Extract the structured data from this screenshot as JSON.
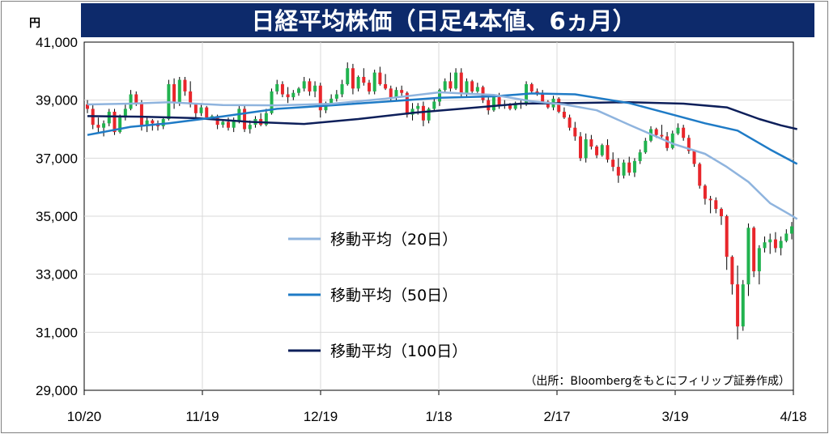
{
  "chart_data": {
    "type": "candlestick",
    "title": "日経平均株価（日足4本値、6ヵ月）",
    "y_unit": "円",
    "ylim": [
      29000,
      41000
    ],
    "y_ticks": [
      "41,000",
      "39,000",
      "37,000",
      "35,000",
      "33,000",
      "31,000",
      "29,000"
    ],
    "y_tick_values": [
      41000,
      39000,
      37000,
      35000,
      33000,
      31000,
      29000
    ],
    "x_tick_labels": [
      "10/20",
      "11/19",
      "12/19",
      "1/18",
      "2/17",
      "3/19",
      "4/18"
    ],
    "source": "（出所：Bloombergをもとにフィリップ証券作成）",
    "legend": {
      "ma20": "移動平均（20日）",
      "ma50": "移動平均（50日）",
      "ma100": "移動平均（100日）"
    },
    "colors": {
      "up": "#21b34f",
      "down": "#e8262b",
      "doji": "#000000",
      "ma20": "#8fb4de",
      "ma50": "#1f7bc6",
      "ma100": "#0d1f5a",
      "title_bg": "#0d2a6b"
    },
    "ohlc": [
      [
        38850,
        39000,
        38550,
        38700
      ],
      [
        38700,
        38850,
        38000,
        38150
      ],
      [
        38150,
        38400,
        37850,
        38050
      ],
      [
        38050,
        38300,
        37750,
        38200
      ],
      [
        38200,
        38700,
        38100,
        38600
      ],
      [
        38600,
        38700,
        37800,
        37900
      ],
      [
        37900,
        38500,
        37850,
        38400
      ],
      [
        38400,
        38850,
        38300,
        38700
      ],
      [
        38700,
        39350,
        38650,
        39200
      ],
      [
        39200,
        39300,
        38800,
        38900
      ],
      [
        38900,
        39000,
        37950,
        38100
      ],
      [
        38100,
        38450,
        37900,
        38300
      ],
      [
        38300,
        38350,
        37950,
        38200
      ],
      [
        38200,
        38300,
        37950,
        38100
      ],
      [
        38100,
        38400,
        38000,
        38350
      ],
      [
        38350,
        39700,
        38300,
        39550
      ],
      [
        39550,
        39750,
        38700,
        38900
      ],
      [
        38900,
        39800,
        38800,
        39700
      ],
      [
        39700,
        39800,
        39150,
        39300
      ],
      [
        39300,
        39650,
        38750,
        38850
      ],
      [
        38850,
        38900,
        38400,
        38550
      ],
      [
        38550,
        38900,
        38450,
        38750
      ],
      [
        38750,
        38800,
        38350,
        38400
      ],
      [
        38400,
        38500,
        38350,
        38450
      ],
      [
        38450,
        38500,
        38000,
        38150
      ],
      [
        38150,
        38350,
        38050,
        38250
      ],
      [
        38250,
        38400,
        37950,
        38050
      ],
      [
        38050,
        38400,
        37900,
        38300
      ],
      [
        38300,
        38800,
        38200,
        38700
      ],
      [
        38700,
        38800,
        37900,
        38000
      ],
      [
        38000,
        38300,
        37850,
        38150
      ],
      [
        38150,
        38450,
        38050,
        38350
      ],
      [
        38350,
        38550,
        38100,
        38150
      ],
      [
        38150,
        38700,
        38100,
        38550
      ],
      [
        38550,
        39400,
        38500,
        39300
      ],
      [
        39300,
        39700,
        39200,
        39550
      ],
      [
        39550,
        39650,
        39100,
        39200
      ],
      [
        39200,
        39450,
        38900,
        39100
      ],
      [
        39100,
        39350,
        39000,
        39250
      ],
      [
        39250,
        39450,
        39150,
        39400
      ],
      [
        39400,
        39800,
        39300,
        39650
      ],
      [
        39650,
        39750,
        39150,
        39300
      ],
      [
        39300,
        39650,
        39100,
        39500
      ],
      [
        39500,
        39600,
        38400,
        38650
      ],
      [
        38650,
        38950,
        38550,
        38900
      ],
      [
        38900,
        39200,
        38850,
        39050
      ],
      [
        39050,
        39350,
        38950,
        39200
      ],
      [
        39200,
        39700,
        39100,
        39550
      ],
      [
        39550,
        40300,
        39500,
        40100
      ],
      [
        40100,
        40250,
        39200,
        39400
      ],
      [
        39400,
        39850,
        39300,
        39800
      ],
      [
        39800,
        40100,
        39500,
        39600
      ],
      [
        39600,
        39700,
        39200,
        39300
      ],
      [
        39300,
        40050,
        39200,
        39950
      ],
      [
        39950,
        40150,
        39500,
        39550
      ],
      [
        39550,
        39900,
        39350,
        39400
      ],
      [
        39400,
        39500,
        38950,
        39100
      ],
      [
        39100,
        39450,
        39000,
        39350
      ],
      [
        39350,
        39500,
        39150,
        39250
      ],
      [
        39250,
        39300,
        38400,
        38500
      ],
      [
        38500,
        38900,
        38300,
        38700
      ],
      [
        38700,
        38900,
        38500,
        38800
      ],
      [
        38800,
        38950,
        38100,
        38300
      ],
      [
        38300,
        38750,
        38200,
        38700
      ],
      [
        38700,
        39050,
        38650,
        38950
      ],
      [
        38950,
        39400,
        38800,
        39350
      ],
      [
        39350,
        39750,
        39250,
        39650
      ],
      [
        39650,
        39950,
        39300,
        39400
      ],
      [
        39400,
        40100,
        39350,
        39950
      ],
      [
        39950,
        40100,
        39100,
        39200
      ],
      [
        39200,
        39750,
        39100,
        39650
      ],
      [
        39650,
        39700,
        39200,
        39300
      ],
      [
        39300,
        39600,
        39250,
        39450
      ],
      [
        39450,
        39500,
        38900,
        39000
      ],
      [
        39000,
        39150,
        38500,
        38650
      ],
      [
        38650,
        39200,
        38600,
        39100
      ],
      [
        39100,
        39250,
        38700,
        38800
      ],
      [
        38800,
        39000,
        38700,
        38850
      ],
      [
        38850,
        38900,
        38650,
        38700
      ],
      [
        38700,
        38950,
        38650,
        38900
      ],
      [
        38900,
        39000,
        38700,
        38850
      ],
      [
        38850,
        39650,
        38800,
        39550
      ],
      [
        39550,
        39600,
        39250,
        39300
      ],
      [
        39300,
        39400,
        39150,
        39200
      ],
      [
        39200,
        39350,
        38850,
        38950
      ],
      [
        38950,
        39000,
        38700,
        38750
      ],
      [
        38750,
        39150,
        38650,
        39050
      ],
      [
        39050,
        39100,
        38550,
        38600
      ],
      [
        38600,
        38750,
        38350,
        38400
      ],
      [
        38400,
        38500,
        37950,
        38050
      ],
      [
        38050,
        38250,
        37600,
        37750
      ],
      [
        37750,
        37900,
        36900,
        37000
      ],
      [
        37000,
        37850,
        36850,
        37650
      ],
      [
        37650,
        37800,
        37300,
        37400
      ],
      [
        37400,
        37450,
        37000,
        37100
      ],
      [
        37100,
        37500,
        37050,
        37450
      ],
      [
        37450,
        37650,
        36850,
        36950
      ],
      [
        36950,
        37200,
        36550,
        36700
      ],
      [
        36700,
        37000,
        36150,
        36400
      ],
      [
        36400,
        36950,
        36300,
        36850
      ],
      [
        36850,
        37050,
        36400,
        36500
      ],
      [
        36500,
        37000,
        36350,
        36900
      ],
      [
        36900,
        37300,
        36800,
        37200
      ],
      [
        37200,
        37700,
        37150,
        37600
      ],
      [
        37600,
        38100,
        37550,
        38000
      ],
      [
        38000,
        38050,
        37700,
        37800
      ],
      [
        37800,
        38150,
        37650,
        37750
      ],
      [
        37750,
        37900,
        37250,
        37350
      ],
      [
        37350,
        37950,
        37300,
        37850
      ],
      [
        37850,
        38200,
        37800,
        38050
      ],
      [
        38050,
        38150,
        37600,
        37700
      ],
      [
        37700,
        37800,
        37150,
        37250
      ],
      [
        37250,
        37300,
        36700,
        36800
      ],
      [
        36800,
        36850,
        35950,
        36050
      ],
      [
        36050,
        36100,
        35400,
        35600
      ],
      [
        35600,
        35700,
        35100,
        35550
      ],
      [
        35550,
        35650,
        35100,
        35250
      ],
      [
        35250,
        35300,
        34700,
        35000
      ],
      [
        35000,
        35050,
        33150,
        33600
      ],
      [
        33600,
        33650,
        32300,
        32650
      ],
      [
        32650,
        33300,
        30750,
        31200
      ],
      [
        31200,
        32800,
        31050,
        32650
      ],
      [
        32650,
        34750,
        32250,
        34600
      ],
      [
        34600,
        34650,
        32900,
        33100
      ],
      [
        33100,
        34000,
        32650,
        33900
      ],
      [
        33900,
        34300,
        33750,
        34100
      ],
      [
        34100,
        34400,
        33700,
        34200
      ],
      [
        34200,
        34450,
        33750,
        33900
      ],
      [
        33900,
        34300,
        33650,
        34150
      ],
      [
        34150,
        34550,
        34100,
        34400
      ],
      [
        34400,
        34800,
        34200,
        34650
      ]
    ],
    "ma20": [
      [
        0,
        38850
      ],
      [
        8,
        38880
      ],
      [
        15,
        38930
      ],
      [
        25,
        38830
      ],
      [
        35,
        38820
      ],
      [
        45,
        38870
      ],
      [
        55,
        39050
      ],
      [
        65,
        39270
      ],
      [
        75,
        39180
      ],
      [
        82,
        38960
      ],
      [
        88,
        38850
      ],
      [
        94,
        38650
      ],
      [
        100,
        38150
      ],
      [
        108,
        37500
      ],
      [
        114,
        37150
      ],
      [
        118,
        36700
      ],
      [
        122,
        36180
      ],
      [
        126,
        35450
      ],
      [
        130,
        35020
      ],
      [
        131,
        34900
      ]
    ],
    "ma50": [
      [
        0,
        37800
      ],
      [
        8,
        38080
      ],
      [
        15,
        38200
      ],
      [
        25,
        38440
      ],
      [
        35,
        38700
      ],
      [
        45,
        38820
      ],
      [
        55,
        38950
      ],
      [
        65,
        39080
      ],
      [
        75,
        39130
      ],
      [
        82,
        39230
      ],
      [
        90,
        39200
      ],
      [
        100,
        38900
      ],
      [
        108,
        38500
      ],
      [
        114,
        38200
      ],
      [
        120,
        37950
      ],
      [
        126,
        37300
      ],
      [
        131,
        36800
      ]
    ],
    "ma100": [
      [
        0,
        38450
      ],
      [
        10,
        38430
      ],
      [
        20,
        38380
      ],
      [
        30,
        38250
      ],
      [
        40,
        38180
      ],
      [
        50,
        38350
      ],
      [
        60,
        38560
      ],
      [
        70,
        38720
      ],
      [
        80,
        38880
      ],
      [
        90,
        38900
      ],
      [
        100,
        38930
      ],
      [
        110,
        38880
      ],
      [
        118,
        38750
      ],
      [
        124,
        38350
      ],
      [
        128,
        38130
      ],
      [
        131,
        38000
      ]
    ]
  }
}
